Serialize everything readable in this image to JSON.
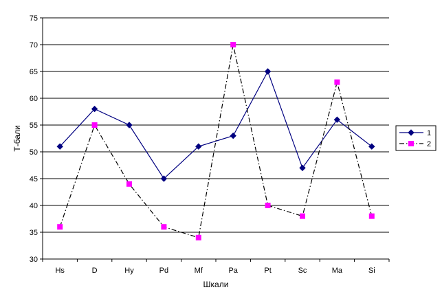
{
  "chart_data": {
    "type": "line",
    "title": "",
    "xlabel": "Шкали",
    "ylabel": "Т-бали",
    "categories": [
      "Hs",
      "D",
      "Hy",
      "Pd",
      "Mf",
      "Pa",
      "Pt",
      "Sc",
      "Ma",
      "Si"
    ],
    "ylim": [
      30,
      75
    ],
    "yticks": [
      30,
      35,
      40,
      45,
      50,
      55,
      60,
      65,
      70,
      75
    ],
    "grid": "horizontal",
    "legend_position": "right",
    "series": [
      {
        "name": "1",
        "values": [
          51,
          58,
          55,
          45,
          51,
          53,
          65,
          47,
          56,
          51
        ],
        "color": "#000080",
        "line_style": "solid",
        "marker": "diamond"
      },
      {
        "name": "2",
        "values": [
          36,
          55,
          44,
          36,
          34,
          70,
          40,
          38,
          63,
          38
        ],
        "color": "#000000",
        "marker_color": "#ff00ff",
        "line_style": "dash-dot",
        "marker": "square"
      }
    ]
  }
}
